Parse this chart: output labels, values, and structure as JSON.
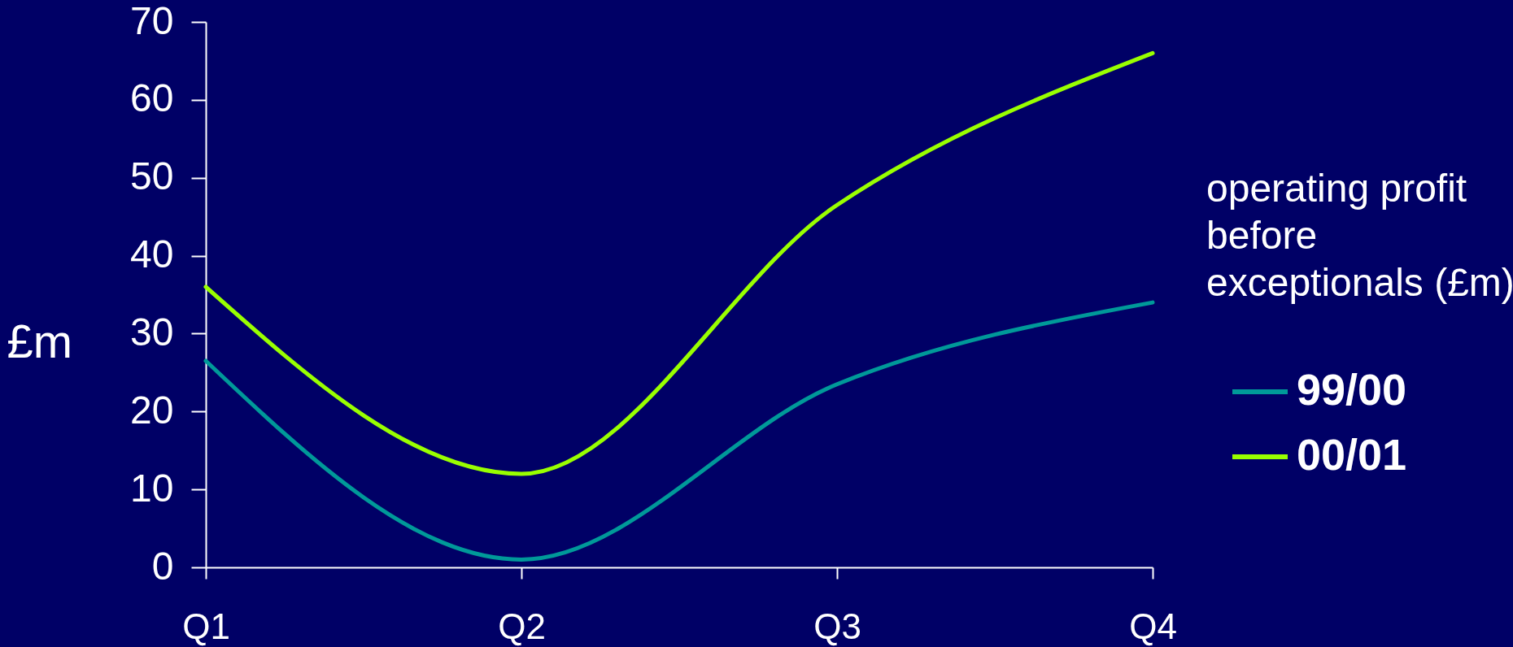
{
  "chart_data": {
    "type": "line",
    "ylabel": "£m",
    "legend_title": "operating profit before exceptionals (£m)",
    "categories": [
      "Q1",
      "Q2",
      "Q3",
      "Q4"
    ],
    "series": [
      {
        "name": "99/00",
        "color": "#009999",
        "values": [
          26.5,
          1,
          23.5,
          34
        ]
      },
      {
        "name": "00/01",
        "color": "#99ff00",
        "values": [
          36,
          12,
          46.5,
          66
        ]
      }
    ],
    "ylim": [
      0,
      70
    ],
    "yticks": [
      0,
      10,
      20,
      30,
      40,
      50,
      60,
      70
    ],
    "grid": false,
    "legend": "right",
    "marker": "none",
    "line_style": "solid"
  }
}
